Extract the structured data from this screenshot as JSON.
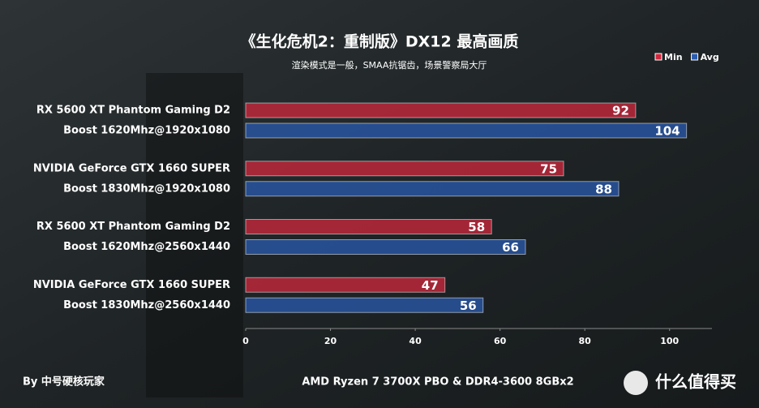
{
  "chart_data": {
    "type": "hbar",
    "title": "《生化危机2：重制版》DX12  最高画质",
    "subtitle": "渲染模式是一般，SMAA抗锯齿，场景警察局大厅",
    "categories": [
      [
        "RX 5600 XT Phantom Gaming D2",
        "Boost 1620Mhz@1920x1080"
      ],
      [
        "NVIDIA GeForce GTX 1660 SUPER",
        "Boost 1830Mhz@1920x1080"
      ],
      [
        "RX 5600 XT Phantom Gaming D2",
        "Boost 1620Mhz@2560x1440"
      ],
      [
        "NVIDIA GeForce GTX 1660 SUPER",
        "Boost 1830Mhz@2560x1440"
      ]
    ],
    "series": [
      {
        "name": "Min",
        "color": "#d0283e",
        "values": [
          92,
          75,
          58,
          47
        ]
      },
      {
        "name": "Avg",
        "color": "#2a5bb0",
        "values": [
          104,
          88,
          66,
          56
        ]
      }
    ],
    "xlim": [
      0,
      110
    ],
    "xticks": [
      0,
      20,
      40,
      60,
      80,
      100
    ],
    "grid": false,
    "footer_left": "By 中号硬核玩家",
    "footer_center": "AMD Ryzen 7 3700X PBO & DDR4-3600 8GBx2",
    "watermark": "什么值得买"
  }
}
